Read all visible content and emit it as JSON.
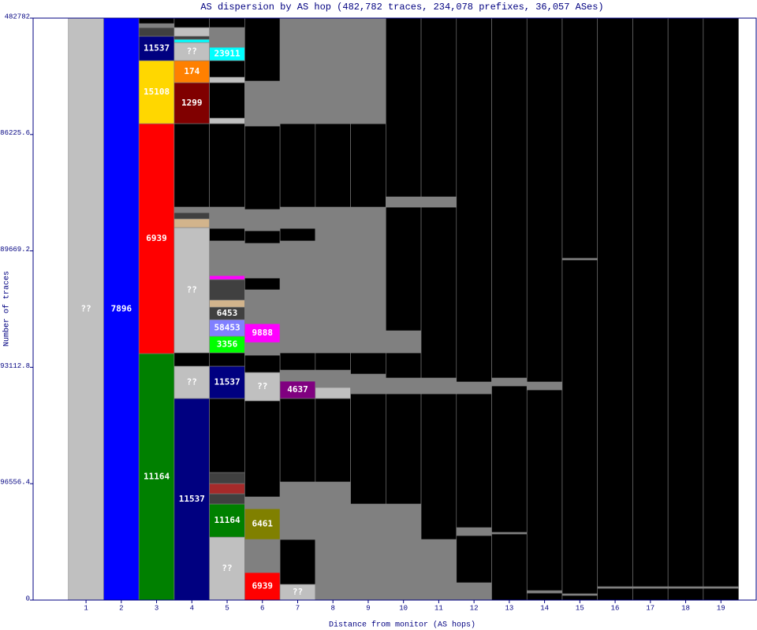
{
  "chart_data": {
    "type": "stacked-column",
    "title": "AS dispersion by AS hop (482,782 traces, 234,078 prefixes, 36,057 ASes)",
    "x_label": "Distance from monitor (AS hops)",
    "y_label": "Number of traces",
    "xlim": [
      -0.5,
      20
    ],
    "ylim": [
      0,
      482782
    ],
    "yticks": [
      0,
      96556.4,
      193112.8,
      289669.2,
      386225.6,
      482782
    ],
    "xticks": [
      1,
      2,
      3,
      4,
      5,
      6,
      7,
      8,
      9,
      10,
      11,
      12,
      13,
      14,
      15,
      16,
      17,
      18,
      19
    ],
    "columns": [
      {
        "segments": [
          {
            "value": 482782,
            "color": "#c0c0c0",
            "label": "??"
          }
        ]
      },
      {
        "segments": [
          {
            "value": 482782,
            "color": "#0000ff",
            "label": "7896"
          }
        ]
      },
      {
        "segments": [
          {
            "value": 204480,
            "color": "#008000",
            "label": "11164"
          },
          {
            "value": 190760,
            "color": "#ff0000",
            "label": "6939"
          },
          {
            "value": 52260,
            "color": "#ffd700",
            "label": "15108"
          },
          {
            "value": 20250,
            "color": "#000080",
            "label": "11537"
          },
          {
            "value": 7190,
            "color": "#404040"
          },
          {
            "value": 3270,
            "color": "#808080"
          },
          {
            "value": 4570,
            "color": "#000000"
          }
        ]
      },
      {
        "segments": [
          {
            "value": 167240,
            "color": "#000080",
            "label": "11537"
          },
          {
            "value": 26790,
            "color": "#c0c0c0",
            "label": "??"
          },
          {
            "value": 11110,
            "color": "#000000"
          },
          {
            "value": 103880,
            "color": "#c0c0c0",
            "label": "??"
          },
          {
            "value": 7190,
            "color": "#d2b48c"
          },
          {
            "value": 5230,
            "color": "#404040"
          },
          {
            "value": 4570,
            "color": "#808080"
          },
          {
            "value": 69250,
            "color": "#000000"
          },
          {
            "value": 33970,
            "color": "#800000",
            "label": "1299"
          },
          {
            "value": 18290,
            "color": "#ff8000",
            "label": "174"
          },
          {
            "value": 15030,
            "color": "#c0c0c0",
            "label": "??"
          },
          {
            "value": 2610,
            "color": "#00ffff"
          },
          {
            "value": 2610,
            "color": "#404040"
          },
          {
            "value": 7190,
            "color": "#c0c0c0"
          },
          {
            "value": 7840,
            "color": "#000000"
          }
        ]
      },
      {
        "segments": [
          {
            "value": 52260,
            "color": "#c0c0c0",
            "label": "??"
          },
          {
            "value": 27440,
            "color": "#008000",
            "label": "11164"
          },
          {
            "value": 8490,
            "color": "#404040"
          },
          {
            "value": 8490,
            "color": "#a52a2a"
          },
          {
            "value": 9150,
            "color": "#404040"
          },
          {
            "value": 61410,
            "color": "#000000"
          },
          {
            "value": 26790,
            "color": "#000080",
            "label": "11537"
          },
          {
            "value": 11110,
            "color": "#000000"
          },
          {
            "value": 13720,
            "color": "#00ff00",
            "label": "3356"
          },
          {
            "value": 13720,
            "color": "#8080ff",
            "label": "58453"
          },
          {
            "value": 10450,
            "color": "#404040",
            "label": "6453"
          },
          {
            "value": 5880,
            "color": "#d2b48c"
          },
          {
            "value": 16990,
            "color": "#404040"
          },
          {
            "value": 3270,
            "color": "#ff00ff"
          },
          {
            "value": 28750,
            "color": "#808080"
          },
          {
            "value": 10450,
            "color": "#000000"
          },
          {
            "value": 17640,
            "color": "#808080"
          },
          {
            "value": 69250,
            "color": "#000000"
          },
          {
            "value": 4570,
            "color": "#c0c0c0"
          },
          {
            "value": 29400,
            "color": "#000000"
          },
          {
            "value": 4570,
            "color": "#c0c0c0"
          },
          {
            "value": 13720,
            "color": "#000000"
          },
          {
            "value": 11110,
            "color": "#00ffff",
            "label": "23911"
          },
          {
            "value": 16330,
            "color": "#808080"
          },
          {
            "value": 7840,
            "color": "#000000"
          }
        ]
      },
      {
        "segments": [
          {
            "value": 22870,
            "color": "#ff0000",
            "label": "6939"
          },
          {
            "value": 27440,
            "color": "#808080"
          },
          {
            "value": 25480,
            "color": "#808000",
            "label": "6461"
          },
          {
            "value": 9800,
            "color": "#808080"
          },
          {
            "value": 79700,
            "color": "#000000"
          },
          {
            "value": 23520,
            "color": "#c0c0c0",
            "label": "??"
          },
          {
            "value": 14370,
            "color": "#000000"
          },
          {
            "value": 10450,
            "color": "#808080"
          },
          {
            "value": 15680,
            "color": "#ff00ff",
            "label": "9888"
          },
          {
            "value": 28090,
            "color": "#808080"
          },
          {
            "value": 9800,
            "color": "#000000"
          },
          {
            "value": 28750,
            "color": "#808080"
          },
          {
            "value": 10450,
            "color": "#000000"
          },
          {
            "value": 17640,
            "color": "#808080"
          },
          {
            "value": 69250,
            "color": "#000000"
          },
          {
            "value": 37240,
            "color": "#808080"
          },
          {
            "value": 52250,
            "color": "#000000"
          }
        ]
      },
      {
        "segments": [
          {
            "value": 13070,
            "color": "#c0c0c0",
            "label": "??"
          },
          {
            "value": 37240,
            "color": "#000000"
          },
          {
            "value": 47690,
            "color": "#808080"
          },
          {
            "value": 69250,
            "color": "#000000"
          },
          {
            "value": 14370,
            "color": "#800080",
            "label": "4637"
          },
          {
            "value": 9150,
            "color": "#808080"
          },
          {
            "value": 14370,
            "color": "#000000"
          },
          {
            "value": 92770,
            "color": "#808080"
          },
          {
            "value": 10450,
            "color": "#000000"
          },
          {
            "value": 17640,
            "color": "#808080"
          },
          {
            "value": 69250,
            "color": "#000000"
          },
          {
            "value": 87540,
            "color": "#808080"
          }
        ]
      },
      {
        "segments": [
          {
            "value": 98000,
            "color": "#808080"
          },
          {
            "value": 69250,
            "color": "#000000"
          },
          {
            "value": 9150,
            "color": "#c0c0c0"
          },
          {
            "value": 14370,
            "color": "#808080"
          },
          {
            "value": 14370,
            "color": "#000000"
          },
          {
            "value": 120860,
            "color": "#808080"
          },
          {
            "value": 69250,
            "color": "#000000"
          },
          {
            "value": 87540,
            "color": "#808080"
          }
        ]
      },
      {
        "segments": [
          {
            "value": 79700,
            "color": "#808080"
          },
          {
            "value": 91460,
            "color": "#000000"
          },
          {
            "value": 16330,
            "color": "#808080"
          },
          {
            "value": 17640,
            "color": "#000000"
          },
          {
            "value": 120860,
            "color": "#808080"
          },
          {
            "value": 69250,
            "color": "#000000"
          },
          {
            "value": 87540,
            "color": "#808080"
          }
        ]
      },
      {
        "segments": [
          {
            "value": 79700,
            "color": "#808080"
          },
          {
            "value": 91460,
            "color": "#000000"
          },
          {
            "value": 13070,
            "color": "#808080"
          },
          {
            "value": 20910,
            "color": "#000000"
          },
          {
            "value": 18290,
            "color": "#808080"
          },
          {
            "value": 102570,
            "color": "#000000"
          },
          {
            "value": 8490,
            "color": "#808080"
          },
          {
            "value": 148300,
            "color": "#000000"
          }
        ]
      },
      {
        "segments": [
          {
            "value": 50300,
            "color": "#808080"
          },
          {
            "value": 120860,
            "color": "#000000"
          },
          {
            "value": 13070,
            "color": "#808080"
          },
          {
            "value": 141770,
            "color": "#000000"
          },
          {
            "value": 8490,
            "color": "#808080"
          },
          {
            "value": 148300,
            "color": "#000000"
          }
        ]
      },
      {
        "segments": [
          {
            "value": 14370,
            "color": "#808080"
          },
          {
            "value": 39200,
            "color": "#000000"
          },
          {
            "value": 6530,
            "color": "#808080"
          },
          {
            "value": 111060,
            "color": "#000000"
          },
          {
            "value": 9800,
            "color": "#808080"
          },
          {
            "value": 301830,
            "color": "#000000"
          }
        ]
      },
      {
        "segments": [
          {
            "value": 54880,
            "color": "#000000"
          },
          {
            "value": 1310,
            "color": "#808080"
          },
          {
            "value": 121510,
            "color": "#000000"
          },
          {
            "value": 6530,
            "color": "#808080"
          },
          {
            "value": 298560,
            "color": "#000000"
          }
        ]
      },
      {
        "segments": [
          {
            "value": 5880,
            "color": "#000000"
          },
          {
            "value": 1960,
            "color": "#808080"
          },
          {
            "value": 166590,
            "color": "#000000"
          },
          {
            "value": 6530,
            "color": "#808080"
          },
          {
            "value": 301830,
            "color": "#000000"
          }
        ]
      },
      {
        "segments": [
          {
            "value": 3920,
            "color": "#000000"
          },
          {
            "value": 1310,
            "color": "#808080"
          },
          {
            "value": 277000,
            "color": "#000000"
          },
          {
            "value": 1310,
            "color": "#808080"
          },
          {
            "value": 199260,
            "color": "#000000"
          }
        ]
      },
      {
        "segments": [
          {
            "value": 9800,
            "color": "#000000"
          },
          {
            "value": 1310,
            "color": "#808080"
          },
          {
            "value": 471690,
            "color": "#000000"
          }
        ]
      },
      {
        "segments": [
          {
            "value": 9800,
            "color": "#000000"
          },
          {
            "value": 1310,
            "color": "#808080"
          },
          {
            "value": 471690,
            "color": "#000000"
          }
        ]
      },
      {
        "segments": [
          {
            "value": 9800,
            "color": "#000000"
          },
          {
            "value": 1310,
            "color": "#808080"
          },
          {
            "value": 471690,
            "color": "#000000"
          }
        ]
      },
      {
        "segments": [
          {
            "value": 9800,
            "color": "#000000"
          },
          {
            "value": 1310,
            "color": "#808080"
          },
          {
            "value": 471690,
            "color": "#000000"
          }
        ]
      }
    ]
  }
}
